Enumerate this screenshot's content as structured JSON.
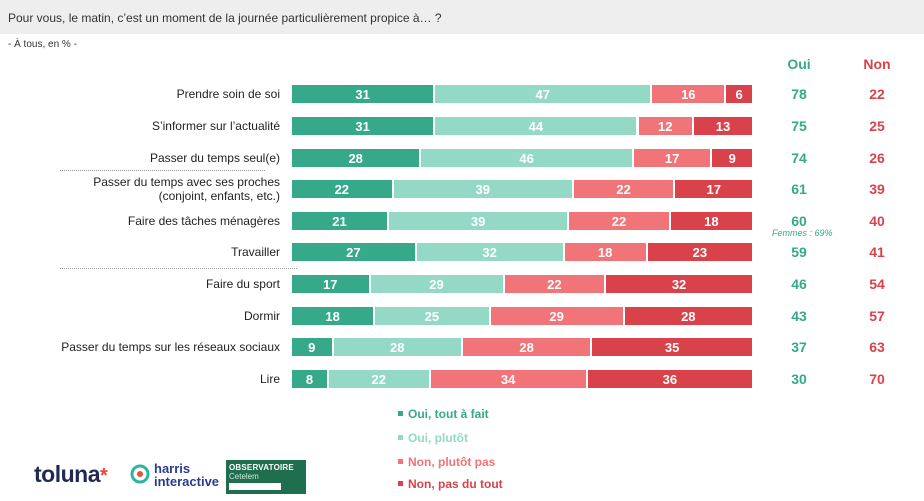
{
  "header": {
    "question": "Pour vous, le matin, c’est un moment de la journée particulièrement propice à… ?",
    "base": "- À tous, en % -"
  },
  "columns": {
    "oui": "Oui",
    "non": "Non"
  },
  "colors": {
    "oui_tout_a_fait": "#35a98a",
    "oui_plutot": "#93d9c6",
    "non_plutot_pas": "#f07478",
    "non_pas_du_tout": "#d9424b",
    "oui_text": "#35a98a",
    "non_text": "#d9424b"
  },
  "chart_data": {
    "type": "bar",
    "orientation": "horizontal",
    "stacked": true,
    "categories": [
      "Prendre soin de soi",
      "S’informer sur l’actualité",
      "Passer du temps seul(e)",
      "Passer du temps avec ses proches\n(conjoint, enfants, etc.)",
      "Faire des tâches ménagères",
      "Travailler",
      "Faire du sport",
      "Dormir",
      "Passer du temps sur les réseaux sociaux",
      "Lire"
    ],
    "series": [
      {
        "name": "Oui, tout à fait",
        "values": [
          31,
          31,
          28,
          22,
          21,
          27,
          17,
          18,
          9,
          8
        ]
      },
      {
        "name": "Oui, plutôt",
        "values": [
          47,
          44,
          46,
          39,
          39,
          32,
          29,
          25,
          28,
          22
        ]
      },
      {
        "name": "Non, plutôt pas",
        "values": [
          16,
          12,
          17,
          22,
          22,
          18,
          22,
          29,
          28,
          34
        ]
      },
      {
        "name": "Non, pas du tout",
        "values": [
          6,
          13,
          9,
          17,
          18,
          23,
          32,
          28,
          35,
          36
        ]
      }
    ],
    "oui_totals": [
      78,
      75,
      74,
      61,
      60,
      59,
      46,
      43,
      37,
      30
    ],
    "non_totals": [
      22,
      25,
      26,
      39,
      40,
      41,
      54,
      57,
      63,
      70
    ],
    "annotations": [
      {
        "category": "Faire des tâches ménagères",
        "text": "Femmes : 69%"
      }
    ],
    "legend_position": "bottom",
    "xlim": [
      0,
      100
    ]
  }
}
